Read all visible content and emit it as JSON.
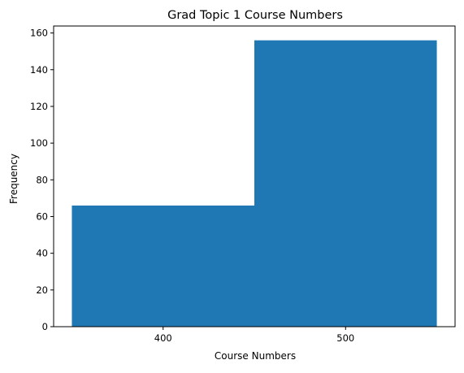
{
  "chart_data": {
    "type": "bar",
    "title": "Grad Topic 1 Course Numbers",
    "xlabel": "Course Numbers",
    "ylabel": "Frequency",
    "bins": [
      {
        "start": 350,
        "end": 450,
        "value": 66
      },
      {
        "start": 450,
        "end": 550,
        "value": 156
      }
    ],
    "xlim": [
      340,
      560
    ],
    "ylim": [
      0,
      163.8
    ],
    "x_ticks": [
      400,
      500
    ],
    "y_ticks": [
      0,
      20,
      40,
      60,
      80,
      100,
      120,
      140,
      160
    ],
    "bar_color": "#1f77b4",
    "grid": false,
    "legend": "none"
  }
}
